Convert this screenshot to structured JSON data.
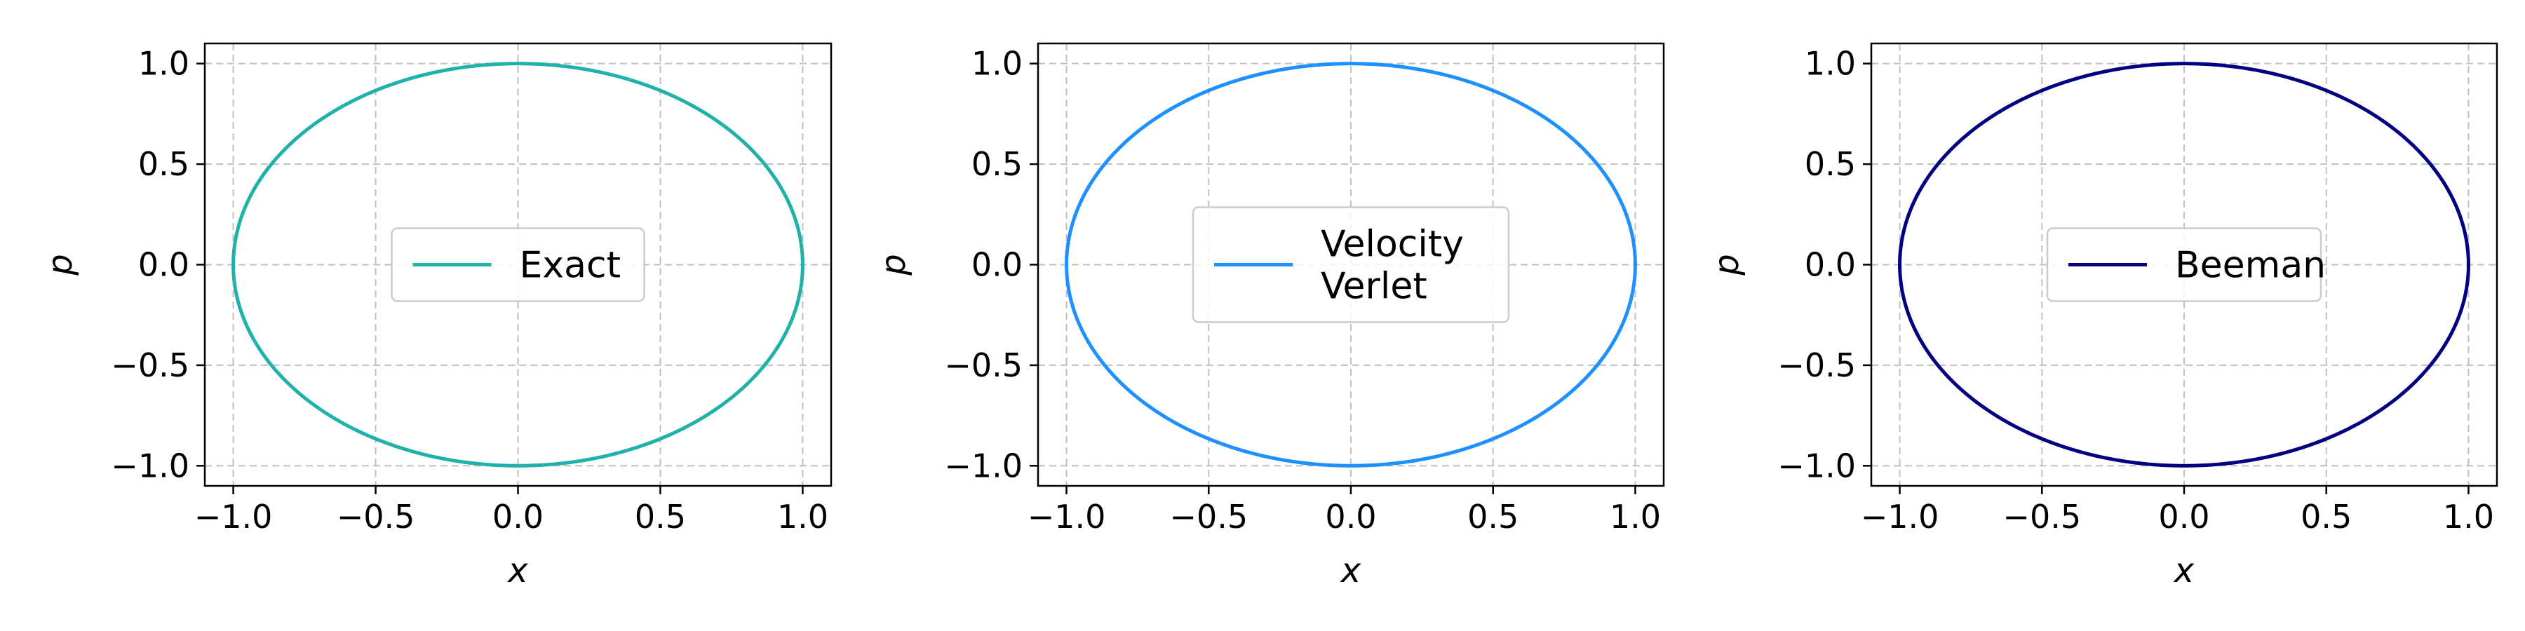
{
  "chart_data": [
    {
      "type": "line",
      "title": "",
      "xlabel": "x",
      "ylabel": "p",
      "xlim": [
        -1.1,
        1.1
      ],
      "ylim": [
        -1.1,
        1.1
      ],
      "xticks": [
        -1.0,
        -0.5,
        0.0,
        0.5,
        1.0
      ],
      "yticks": [
        -1.0,
        -0.5,
        0.0,
        0.5,
        1.0
      ],
      "x_tick_labels": [
        "−1.0",
        "−0.5",
        "0.0",
        "0.5",
        "1.0"
      ],
      "y_tick_labels": [
        "−1.0",
        "−0.5",
        "0.0",
        "0.5",
        "1.0"
      ],
      "grid": true,
      "legend_position": "center",
      "series": [
        {
          "name": "Exact",
          "color": "#20b2aa",
          "shape": "circle",
          "radius": 1.0
        }
      ]
    },
    {
      "type": "line",
      "title": "",
      "xlabel": "x",
      "ylabel": "p",
      "xlim": [
        -1.1,
        1.1
      ],
      "ylim": [
        -1.1,
        1.1
      ],
      "xticks": [
        -1.0,
        -0.5,
        0.0,
        0.5,
        1.0
      ],
      "yticks": [
        -1.0,
        -0.5,
        0.0,
        0.5,
        1.0
      ],
      "x_tick_labels": [
        "−1.0",
        "−0.5",
        "0.0",
        "0.5",
        "1.0"
      ],
      "y_tick_labels": [
        "−1.0",
        "−0.5",
        "0.0",
        "0.5",
        "1.0"
      ],
      "grid": true,
      "legend_position": "center",
      "series": [
        {
          "name": "Velocity Verlet",
          "name_lines": [
            "Velocity",
            "Verlet"
          ],
          "color": "#1e90ff",
          "shape": "circle",
          "radius": 1.0
        }
      ]
    },
    {
      "type": "line",
      "title": "",
      "xlabel": "x",
      "ylabel": "p",
      "xlim": [
        -1.1,
        1.1
      ],
      "ylim": [
        -1.1,
        1.1
      ],
      "xticks": [
        -1.0,
        -0.5,
        0.0,
        0.5,
        1.0
      ],
      "yticks": [
        -1.0,
        -0.5,
        0.0,
        0.5,
        1.0
      ],
      "x_tick_labels": [
        "−1.0",
        "−0.5",
        "0.0",
        "0.5",
        "1.0"
      ],
      "y_tick_labels": [
        "−1.0",
        "−0.5",
        "0.0",
        "0.5",
        "1.0"
      ],
      "grid": true,
      "legend_position": "center",
      "series": [
        {
          "name": "Beeman",
          "color": "#000080",
          "shape": "circle",
          "radius": 1.0
        }
      ]
    }
  ]
}
